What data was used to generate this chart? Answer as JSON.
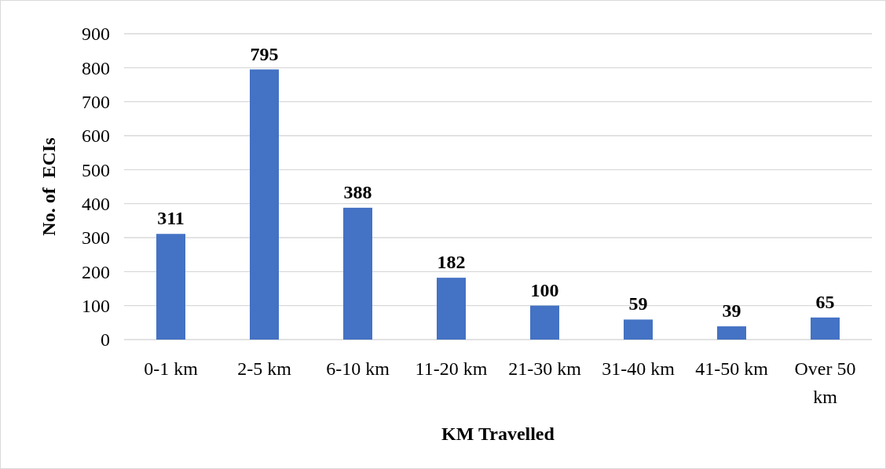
{
  "chart_data": {
    "type": "bar",
    "xlabel": "KM Travelled",
    "ylabel": "No. of  ECIs",
    "categories": [
      "0-1 km",
      "2-5 km",
      "6-10 km",
      "11-20 km",
      "21-30 km",
      "31-40 km",
      "41-50 km",
      "Over 50 km"
    ],
    "values": [
      311,
      795,
      388,
      182,
      100,
      59,
      39,
      65
    ],
    "color": "#4472c4",
    "ylim": [
      0,
      900
    ],
    "yticks": [
      0,
      100,
      200,
      300,
      400,
      500,
      600,
      700,
      800,
      900
    ],
    "grid": "y",
    "data_labels": true
  }
}
